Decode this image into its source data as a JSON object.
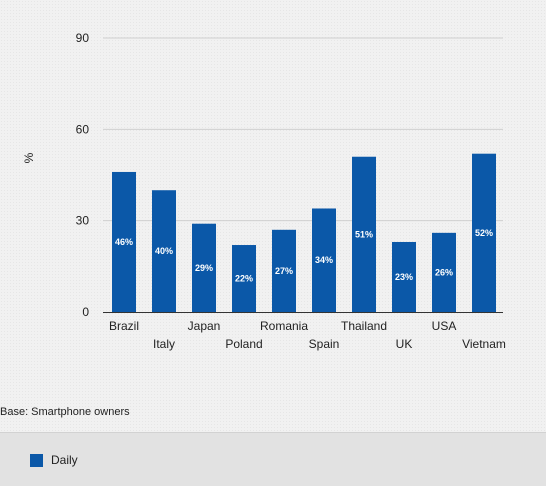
{
  "chart_data": {
    "type": "bar",
    "ylabel": "%",
    "ylim": [
      0,
      90
    ],
    "yticks": [
      0,
      30,
      60,
      90
    ],
    "categories": [
      "Brazil",
      "Italy",
      "Japan",
      "Poland",
      "Romania",
      "Spain",
      "Thailand",
      "UK",
      "USA",
      "Vietnam"
    ],
    "series": [
      {
        "name": "Daily",
        "color": "#0b58a8",
        "values": [
          46,
          40,
          29,
          22,
          27,
          34,
          51,
          23,
          26,
          52
        ],
        "labels": [
          "46%",
          "40%",
          "29%",
          "22%",
          "27%",
          "34%",
          "51%",
          "23%",
          "26%",
          "52%"
        ]
      }
    ],
    "grid": true,
    "legend_position": "bottom"
  },
  "footnote": "Base: Smartphone owners",
  "legend": {
    "items": [
      {
        "label": "Daily",
        "color": "#0b58a8"
      }
    ]
  }
}
